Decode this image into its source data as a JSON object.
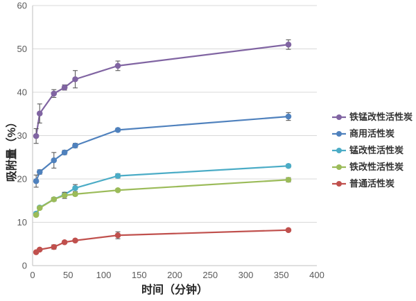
{
  "chart_data": {
    "type": "line",
    "title": "",
    "xlabel": "时间（分钟）",
    "ylabel": "吸附量（%）",
    "xlim": [
      0,
      400
    ],
    "ylim": [
      0,
      60
    ],
    "xticks": [
      0,
      50,
      100,
      150,
      200,
      250,
      300,
      350,
      400
    ],
    "yticks": [
      0,
      10,
      20,
      30,
      40,
      50,
      60
    ],
    "grid": "horizontal-only",
    "gridline_color": "#d9d9d9",
    "spine_color": "#bfbfbf",
    "tick_label_color": "#595959",
    "error_bar_color": "#595959",
    "background_color": "#ffffff",
    "legend_position": "right",
    "marker": "circle",
    "x": [
      5,
      10,
      30,
      45,
      60,
      120,
      360
    ],
    "series": [
      {
        "name": "铁锰改性活性炭",
        "color": "#8064A2",
        "values": [
          29.9,
          35.1,
          39.7,
          41.1,
          43.0,
          46.1,
          51.0
        ],
        "errors": [
          1.7,
          2.2,
          0.9,
          0.6,
          2.0,
          1.1,
          1.1
        ]
      },
      {
        "name": "商用活性炭",
        "color": "#4F81BD",
        "values": [
          19.5,
          21.6,
          24.3,
          26.1,
          27.7,
          31.3,
          34.4
        ],
        "errors": [
          1.4,
          0.5,
          1.8,
          0.5,
          0.5,
          0.4,
          0.9
        ]
      },
      {
        "name": "锰改性活性炭",
        "color": "#4BACC6",
        "values": [
          12.0,
          13.4,
          15.3,
          16.4,
          17.9,
          20.7,
          23.0
        ],
        "errors": [
          0.4,
          0.3,
          0.4,
          0.5,
          0.8,
          0.5,
          0.4
        ]
      },
      {
        "name": "铁改性活性炭",
        "color": "#9BBB59",
        "values": [
          11.7,
          13.3,
          15.3,
          16.2,
          16.5,
          17.4,
          19.8
        ],
        "errors": [
          0.3,
          0.3,
          0.4,
          0.7,
          0.4,
          0.3,
          0.5
        ]
      },
      {
        "name": "普通活性炭",
        "color": "#C0504D",
        "values": [
          3.1,
          3.7,
          4.3,
          5.4,
          5.8,
          7.0,
          8.2
        ],
        "errors": [
          0.25,
          0.25,
          0.5,
          0.3,
          0.3,
          0.8,
          0.3
        ]
      }
    ]
  }
}
